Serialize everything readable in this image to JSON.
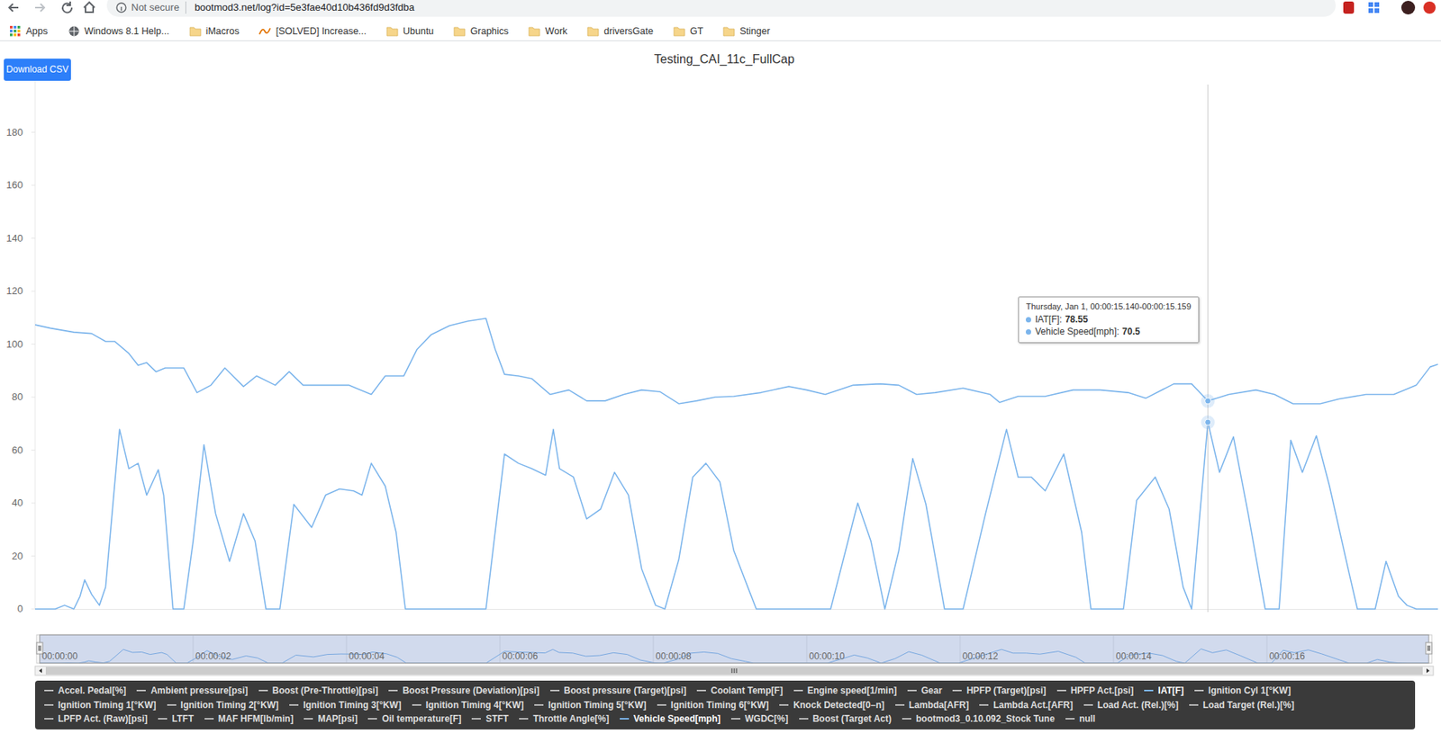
{
  "browser": {
    "security": "Not secure",
    "url": "bootmod3.net/log?id=5e3fae40d10b436fd9d3fdba",
    "bookmarks": [
      "Apps",
      "Windows 8.1 Help...",
      "iMacros",
      "[SOLVED] Increase...",
      "Ubuntu",
      "Graphics",
      "Work",
      "driversGate",
      "GT",
      "Stinger"
    ]
  },
  "button": "Download CSV",
  "chart_data": {
    "type": "line",
    "title": "Testing_CAI_11c_FullCap",
    "xlim": [
      0,
      18.11
    ],
    "ylim": [
      0,
      200
    ],
    "yticks": [
      0,
      20,
      40,
      60,
      80,
      100,
      120,
      140,
      160,
      180
    ],
    "grid": false,
    "tick_labels": "y",
    "series": [
      {
        "name": "IAT[F]",
        "color": "#7cb5ec",
        "x": [
          0,
          0.2,
          0.5,
          0.73,
          0.91,
          1.03,
          1.21,
          1.33,
          1.44,
          1.56,
          1.68,
          1.92,
          2.09,
          2.27,
          2.45,
          2.69,
          2.86,
          3.1,
          3.28,
          3.46,
          3.69,
          4.05,
          4.34,
          4.52,
          4.76,
          4.93,
          5.11,
          5.35,
          5.59,
          5.82,
          5.94,
          6.06,
          6.24,
          6.41,
          6.65,
          6.89,
          7.12,
          7.36,
          7.6,
          7.83,
          8.07,
          8.31,
          8.54,
          8.78,
          9.02,
          9.37,
          9.73,
          9.96,
          10.2,
          10.56,
          10.91,
          11.15,
          11.38,
          11.62,
          11.98,
          12.33,
          12.45,
          12.69,
          13.04,
          13.4,
          13.75,
          14.11,
          14.34,
          14.7,
          14.93,
          15.14,
          15.41,
          15.76,
          16.0,
          16.24,
          16.59,
          16.83,
          17.18,
          17.54,
          17.83,
          18.01,
          18.11
        ],
        "values": [
          107.3,
          106,
          104.5,
          104,
          101,
          101,
          96.5,
          92,
          93,
          89.6,
          91,
          91,
          81.7,
          84.5,
          91,
          84,
          88,
          84.5,
          89.6,
          84.5,
          84.5,
          84.5,
          81,
          88,
          88,
          98,
          103.5,
          107,
          108.7,
          109.7,
          98,
          88.6,
          88,
          87,
          81,
          82.7,
          78.6,
          78.6,
          81,
          82.7,
          82,
          77.5,
          78.6,
          80,
          80.3,
          81.7,
          84,
          82.7,
          81,
          84.5,
          85,
          84.5,
          81,
          81.7,
          83.4,
          81,
          78,
          80.3,
          80.3,
          82.7,
          82.7,
          81.7,
          79.6,
          85,
          85,
          78.55,
          81,
          82.7,
          81,
          77.5,
          77.5,
          79.3,
          81,
          81,
          84.5,
          91.4,
          92.4
        ]
      },
      {
        "name": "Vehicle Speed[mph]",
        "color": "#7cb5ec",
        "x": [
          0,
          0.26,
          0.38,
          0.5,
          0.58,
          0.64,
          0.73,
          0.83,
          0.91,
          1.09,
          1.21,
          1.33,
          1.44,
          1.59,
          1.66,
          1.78,
          1.92,
          2.04,
          2.18,
          2.33,
          2.51,
          2.69,
          2.84,
          2.98,
          3.16,
          3.34,
          3.57,
          3.75,
          3.93,
          4.11,
          4.22,
          4.34,
          4.52,
          4.66,
          4.78,
          5.82,
          6.06,
          6.24,
          6.41,
          6.59,
          6.69,
          6.77,
          6.95,
          7.12,
          7.3,
          7.48,
          7.66,
          7.83,
          8.01,
          8.13,
          8.31,
          8.49,
          8.66,
          8.84,
          9.02,
          9.2,
          9.31,
          10.27,
          10.62,
          10.79,
          10.97,
          11.15,
          11.33,
          11.5,
          11.74,
          11.98,
          12.27,
          12.54,
          12.69,
          12.86,
          13.04,
          13.28,
          13.51,
          13.63,
          14.05,
          14.22,
          14.46,
          14.64,
          14.82,
          14.93,
          15.14,
          15.29,
          15.47,
          15.66,
          15.88,
          16.06,
          16.21,
          16.36,
          16.54,
          16.71,
          16.95,
          17.07,
          17.3,
          17.44,
          17.6,
          17.71,
          17.83,
          18.11
        ],
        "values": [
          0,
          0,
          1.4,
          0,
          4.8,
          11,
          5.5,
          1.4,
          8.3,
          67.8,
          53,
          55,
          43,
          52.6,
          43,
          0,
          0,
          25.6,
          62,
          36,
          18,
          36,
          25.6,
          0,
          0,
          39.5,
          30.8,
          43,
          45.3,
          44.6,
          43,
          55,
          46.4,
          29,
          0,
          0,
          58.5,
          55,
          53,
          50.5,
          67.8,
          53,
          49.8,
          34,
          37.7,
          51.6,
          43,
          15.2,
          1.4,
          0,
          18.7,
          49.8,
          55,
          48,
          22,
          8.3,
          0,
          0,
          40,
          25.6,
          0,
          22,
          56.8,
          39.5,
          0,
          0,
          36,
          67.8,
          49.8,
          49.8,
          44.6,
          58.5,
          29,
          0,
          0,
          41,
          49.8,
          37.7,
          8.3,
          0,
          70.5,
          51.6,
          65,
          36,
          0,
          0,
          63.7,
          51.6,
          65.4,
          46.4,
          15.2,
          0,
          0,
          18,
          4.8,
          1.4,
          0,
          0
        ]
      }
    ]
  },
  "navigator": {
    "ylim": [
      0,
      140
    ],
    "xticks": [
      {
        "value": 0,
        "label": "00:00:00"
      },
      {
        "value": 2,
        "label": "00:00:02"
      },
      {
        "value": 4,
        "label": "00:00:04"
      },
      {
        "value": 6,
        "label": "00:00:06"
      },
      {
        "value": 8,
        "label": "00:00:08"
      },
      {
        "value": 10,
        "label": "00:00:10"
      },
      {
        "value": 12,
        "label": "00:00:12"
      },
      {
        "value": 14,
        "label": "00:00:14"
      },
      {
        "value": 16,
        "label": "00:00:16"
      }
    ]
  },
  "tooltip": {
    "header": "Thursday, Jan 1, 00:00:15.140-00:00:15.159",
    "x": 15.14,
    "items": [
      {
        "label": "IAT[F]:",
        "value": 78.55
      },
      {
        "label": "Vehicle Speed[mph]:",
        "value": 70.5
      }
    ]
  },
  "legend_items": [
    [
      "Accel. Pedal[%]",
      "Ambient pressure[psi]",
      "Boost (Pre-Throttle)[psi]",
      "Boost Pressure (Deviation)[psi]",
      "Boost pressure (Target)[psi]",
      "Coolant Temp[F]",
      "Engine speed[1/min]",
      "Gear",
      "HPFP (Target)[psi]",
      "HPFP Act.[psi]",
      "IAT[F]",
      "Ignition Cyl 1[°KW]"
    ],
    [
      "Ignition Timing 1[°KW]",
      "Ignition Timing 2[°KW]",
      "Ignition Timing 3[°KW]",
      "Ignition Timing 4[°KW]",
      "Ignition Timing 5[°KW]",
      "Ignition Timing 6[°KW]",
      "Knock Detected[0–n]",
      "Lambda[AFR]",
      "Lambda Act.[AFR]",
      "Load Act. (Rel.)[%]",
      "Load Target (Rel.)[%]"
    ],
    [
      "LPFP Act. (Raw)[psi]",
      "LTFT",
      "MAF HFM[lb/min]",
      "MAP[psi]",
      "Oil temperature[F]",
      "STFT",
      "Throttle Angle[%]",
      "Vehicle Speed[mph]",
      "WGDC[%]",
      "Boost (Target Act)",
      "bootmod3_0.10.092_Stock Tune",
      "null"
    ]
  ]
}
